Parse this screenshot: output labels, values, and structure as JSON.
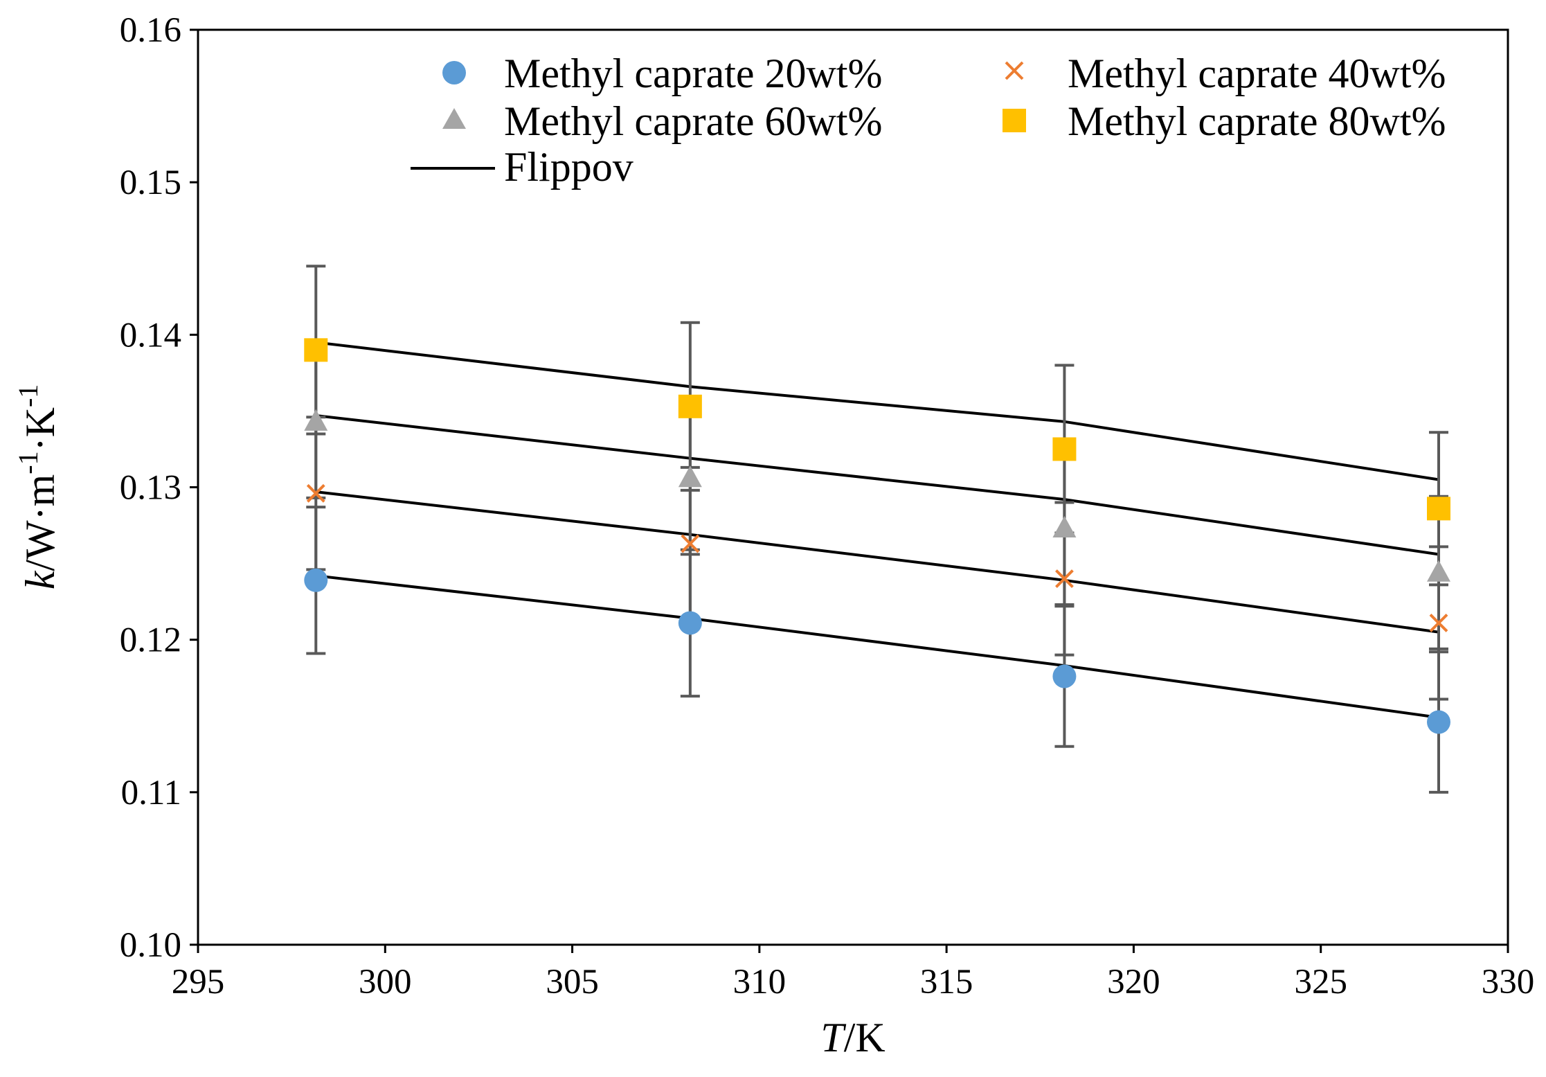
{
  "chart_data": {
    "type": "scatter",
    "title": "",
    "xlabel": {
      "italic": "T",
      "rest": "/K"
    },
    "ylabel": {
      "italic": "k",
      "rest": "/W·m",
      "sup1": "-1",
      "mid": "·K",
      "sup2": "-1"
    },
    "xlim": [
      295,
      330
    ],
    "ylim": [
      0.1,
      0.16
    ],
    "xticks": [
      295,
      300,
      305,
      310,
      315,
      320,
      325,
      330
    ],
    "yticks": [
      "0.10",
      "0.11",
      "0.12",
      "0.13",
      "0.14",
      "0.15",
      "0.16"
    ],
    "grid": false,
    "legend_position": "top",
    "x": [
      298.15,
      308.15,
      318.15,
      328.15
    ],
    "series": [
      {
        "name": "Methyl caprate 20wt%",
        "marker": "circle",
        "color": "#5B9BD5",
        "values": [
          0.1239,
          0.1211,
          0.1176,
          0.1146
        ],
        "error": [
          0.0048,
          0.0048,
          0.0046,
          0.0046
        ]
      },
      {
        "name": "Methyl caprate 40wt%",
        "marker": "x",
        "color": "#ED7D31",
        "values": [
          0.1296,
          0.1263,
          0.124,
          0.1211
        ],
        "error": [
          0.005,
          0.005,
          0.005,
          0.005
        ]
      },
      {
        "name": "Methyl caprate 60wt%",
        "marker": "triangle",
        "color": "#A5A5A5",
        "values": [
          0.1343,
          0.1306,
          0.1273,
          0.1244
        ],
        "error": [
          0.005,
          0.005,
          0.005,
          0.005
        ]
      },
      {
        "name": "Methyl caprate 80wt%",
        "marker": "square",
        "color": "#FFC000",
        "values": [
          0.139,
          0.1353,
          0.1325,
          0.1286
        ],
        "error": [
          0.0055,
          0.0055,
          0.0055,
          0.005
        ]
      }
    ],
    "model_lines": {
      "name": "Flippov",
      "color": "#000000",
      "lines": [
        {
          "x": [
            298.15,
            308.15,
            318.15,
            328.15
          ],
          "y": [
            0.1242,
            0.1214,
            0.1183,
            0.1149
          ]
        },
        {
          "x": [
            298.15,
            308.15,
            318.15,
            328.15
          ],
          "y": [
            0.1297,
            0.1269,
            0.1239,
            0.1205
          ]
        },
        {
          "x": [
            298.15,
            308.15,
            318.15,
            328.15
          ],
          "y": [
            0.1347,
            0.1319,
            0.1292,
            0.1256
          ]
        },
        {
          "x": [
            298.15,
            308.15,
            318.15,
            328.15
          ],
          "y": [
            0.1395,
            0.1366,
            0.1343,
            0.1305
          ]
        }
      ]
    },
    "legend": [
      {
        "label": "Methyl caprate 20wt%",
        "marker": "circle"
      },
      {
        "label": "Methyl caprate 40wt%",
        "marker": "x"
      },
      {
        "label": "Methyl caprate 60wt%",
        "marker": "triangle"
      },
      {
        "label": "Methyl caprate 80wt%",
        "marker": "square"
      },
      {
        "label": "Flippov",
        "marker": "line"
      }
    ]
  }
}
